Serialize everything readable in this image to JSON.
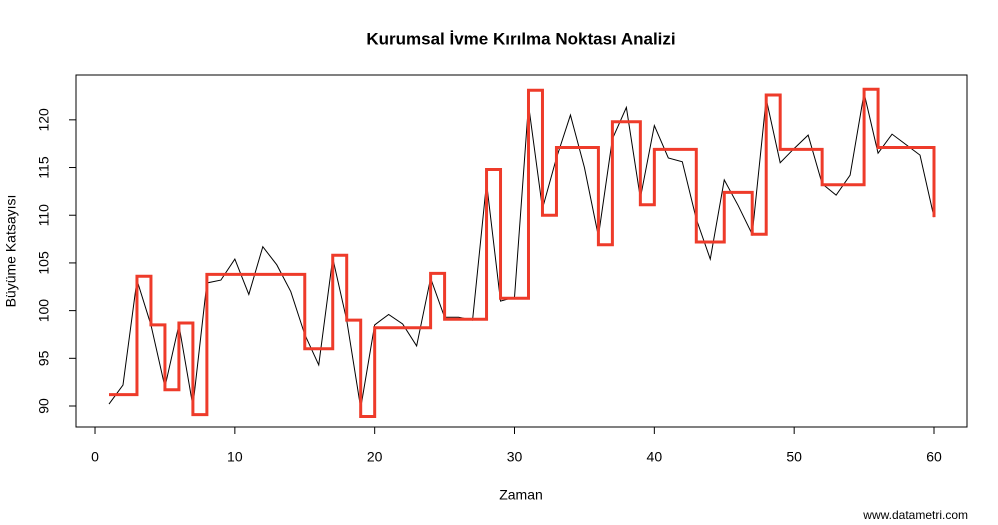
{
  "chart_data": {
    "type": "line",
    "title": "Kurumsal İvme Kırılma Noktası Analizi",
    "xlabel": "Zaman",
    "ylabel": "Büyüme Katsayısı",
    "annotation": "www.datametri.com",
    "x": [
      1,
      2,
      3,
      4,
      5,
      6,
      7,
      8,
      9,
      10,
      11,
      12,
      13,
      14,
      15,
      16,
      17,
      18,
      19,
      20,
      21,
      22,
      23,
      24,
      25,
      26,
      27,
      28,
      29,
      30,
      31,
      32,
      33,
      34,
      35,
      36,
      37,
      38,
      39,
      40,
      41,
      42,
      43,
      44,
      45,
      46,
      47,
      48,
      49,
      50,
      51,
      52,
      53,
      54,
      55,
      56,
      57,
      58,
      59,
      60
    ],
    "series": [
      {
        "color": "#000000",
        "width": 1,
        "step": false,
        "values": [
          90.2,
          92.2,
          103.2,
          98.5,
          92.0,
          98.5,
          90.0,
          102.9,
          103.2,
          105.4,
          101.7,
          106.7,
          104.8,
          102.0,
          97.5,
          94.3,
          105.5,
          99.0,
          89.8,
          98.5,
          99.6,
          98.6,
          96.3,
          103.4,
          99.3,
          99.3,
          99.0,
          113.4,
          101.0,
          101.4,
          121.6,
          110.7,
          116.0,
          120.5,
          115.0,
          107.8,
          118.0,
          121.3,
          111.8,
          119.4,
          116.0,
          115.6,
          109.6,
          105.4,
          113.7,
          111.0,
          108.0,
          122.2,
          115.5,
          117.0,
          118.4,
          113.3,
          112.1,
          114.2,
          122.8,
          116.5,
          118.5,
          117.4,
          116.3,
          109.8
        ]
      },
      {
        "color": "#ee3b2a",
        "width": 3,
        "step": true,
        "values": [
          91.2,
          91.2,
          103.6,
          98.5,
          91.7,
          98.7,
          89.1,
          103.8,
          103.8,
          103.8,
          103.8,
          103.8,
          103.8,
          103.8,
          96.0,
          96.0,
          105.8,
          99.0,
          88.9,
          98.2,
          98.2,
          98.2,
          98.2,
          103.9,
          99.1,
          99.1,
          99.1,
          114.8,
          101.3,
          101.3,
          123.1,
          110.0,
          117.1,
          117.1,
          117.1,
          106.9,
          119.8,
          119.8,
          111.1,
          116.9,
          116.9,
          116.9,
          107.2,
          107.2,
          112.4,
          112.4,
          108.0,
          122.6,
          116.9,
          116.9,
          116.9,
          113.2,
          113.2,
          113.2,
          123.2,
          117.1,
          117.1,
          117.1,
          117.1,
          109.8
        ]
      }
    ],
    "xlim": [
      -1.36,
      62.36
    ],
    "xticks": [
      0,
      10,
      20,
      30,
      40,
      50,
      60
    ],
    "ylim": [
      87.8,
      124.7
    ],
    "yticks": [
      90,
      95,
      100,
      105,
      110,
      115,
      120
    ],
    "grid": false
  }
}
